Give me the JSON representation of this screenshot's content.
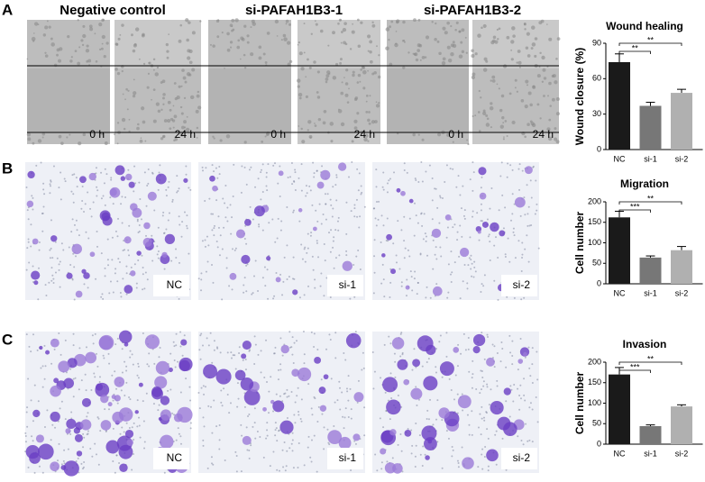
{
  "panels": [
    "A",
    "B",
    "C"
  ],
  "column_headers": [
    "Negative control",
    "si-PAFAH1B3-1",
    "si-PAFAH1B3-2"
  ],
  "wound_image_labels": [
    "0 h",
    "24 h",
    "0 h",
    "24 h",
    "0 h",
    "24 h"
  ],
  "migration_image_labels": [
    "NC",
    "si-1",
    "si-2"
  ],
  "invasion_image_labels": [
    "NC",
    "si-1",
    "si-2"
  ],
  "chart_data": [
    {
      "type": "bar",
      "title": "Wound healing",
      "y_label": "Wound closure (%)",
      "categories": [
        "NC",
        "si-1",
        "si-2"
      ],
      "values": [
        74,
        37,
        48
      ],
      "errors": [
        7,
        3,
        3
      ],
      "colors": [
        "#1a1a1a",
        "#777777",
        "#b0b0b0"
      ],
      "ylim": [
        0,
        90
      ],
      "yticks": [
        0,
        30,
        60,
        90
      ],
      "annotations": [
        "**",
        "**"
      ]
    },
    {
      "type": "bar",
      "title": "Migration",
      "y_label": "Cell number",
      "categories": [
        "NC",
        "si-1",
        "si-2"
      ],
      "values": [
        162,
        64,
        82
      ],
      "errors": [
        15,
        4,
        9
      ],
      "colors": [
        "#1a1a1a",
        "#777777",
        "#b0b0b0"
      ],
      "ylim": [
        0,
        200
      ],
      "yticks": [
        0,
        50,
        100,
        150,
        200
      ],
      "annotations": [
        "***",
        "**"
      ]
    },
    {
      "type": "bar",
      "title": "Invasion",
      "y_label": "Cell number",
      "categories": [
        "NC",
        "si-1",
        "si-2"
      ],
      "values": [
        170,
        44,
        92
      ],
      "errors": [
        17,
        3,
        4
      ],
      "colors": [
        "#1a1a1a",
        "#777777",
        "#b0b0b0"
      ],
      "ylim": [
        0,
        200
      ],
      "yticks": [
        0,
        50,
        100,
        150,
        200
      ],
      "annotations": [
        "***",
        "**"
      ]
    }
  ]
}
